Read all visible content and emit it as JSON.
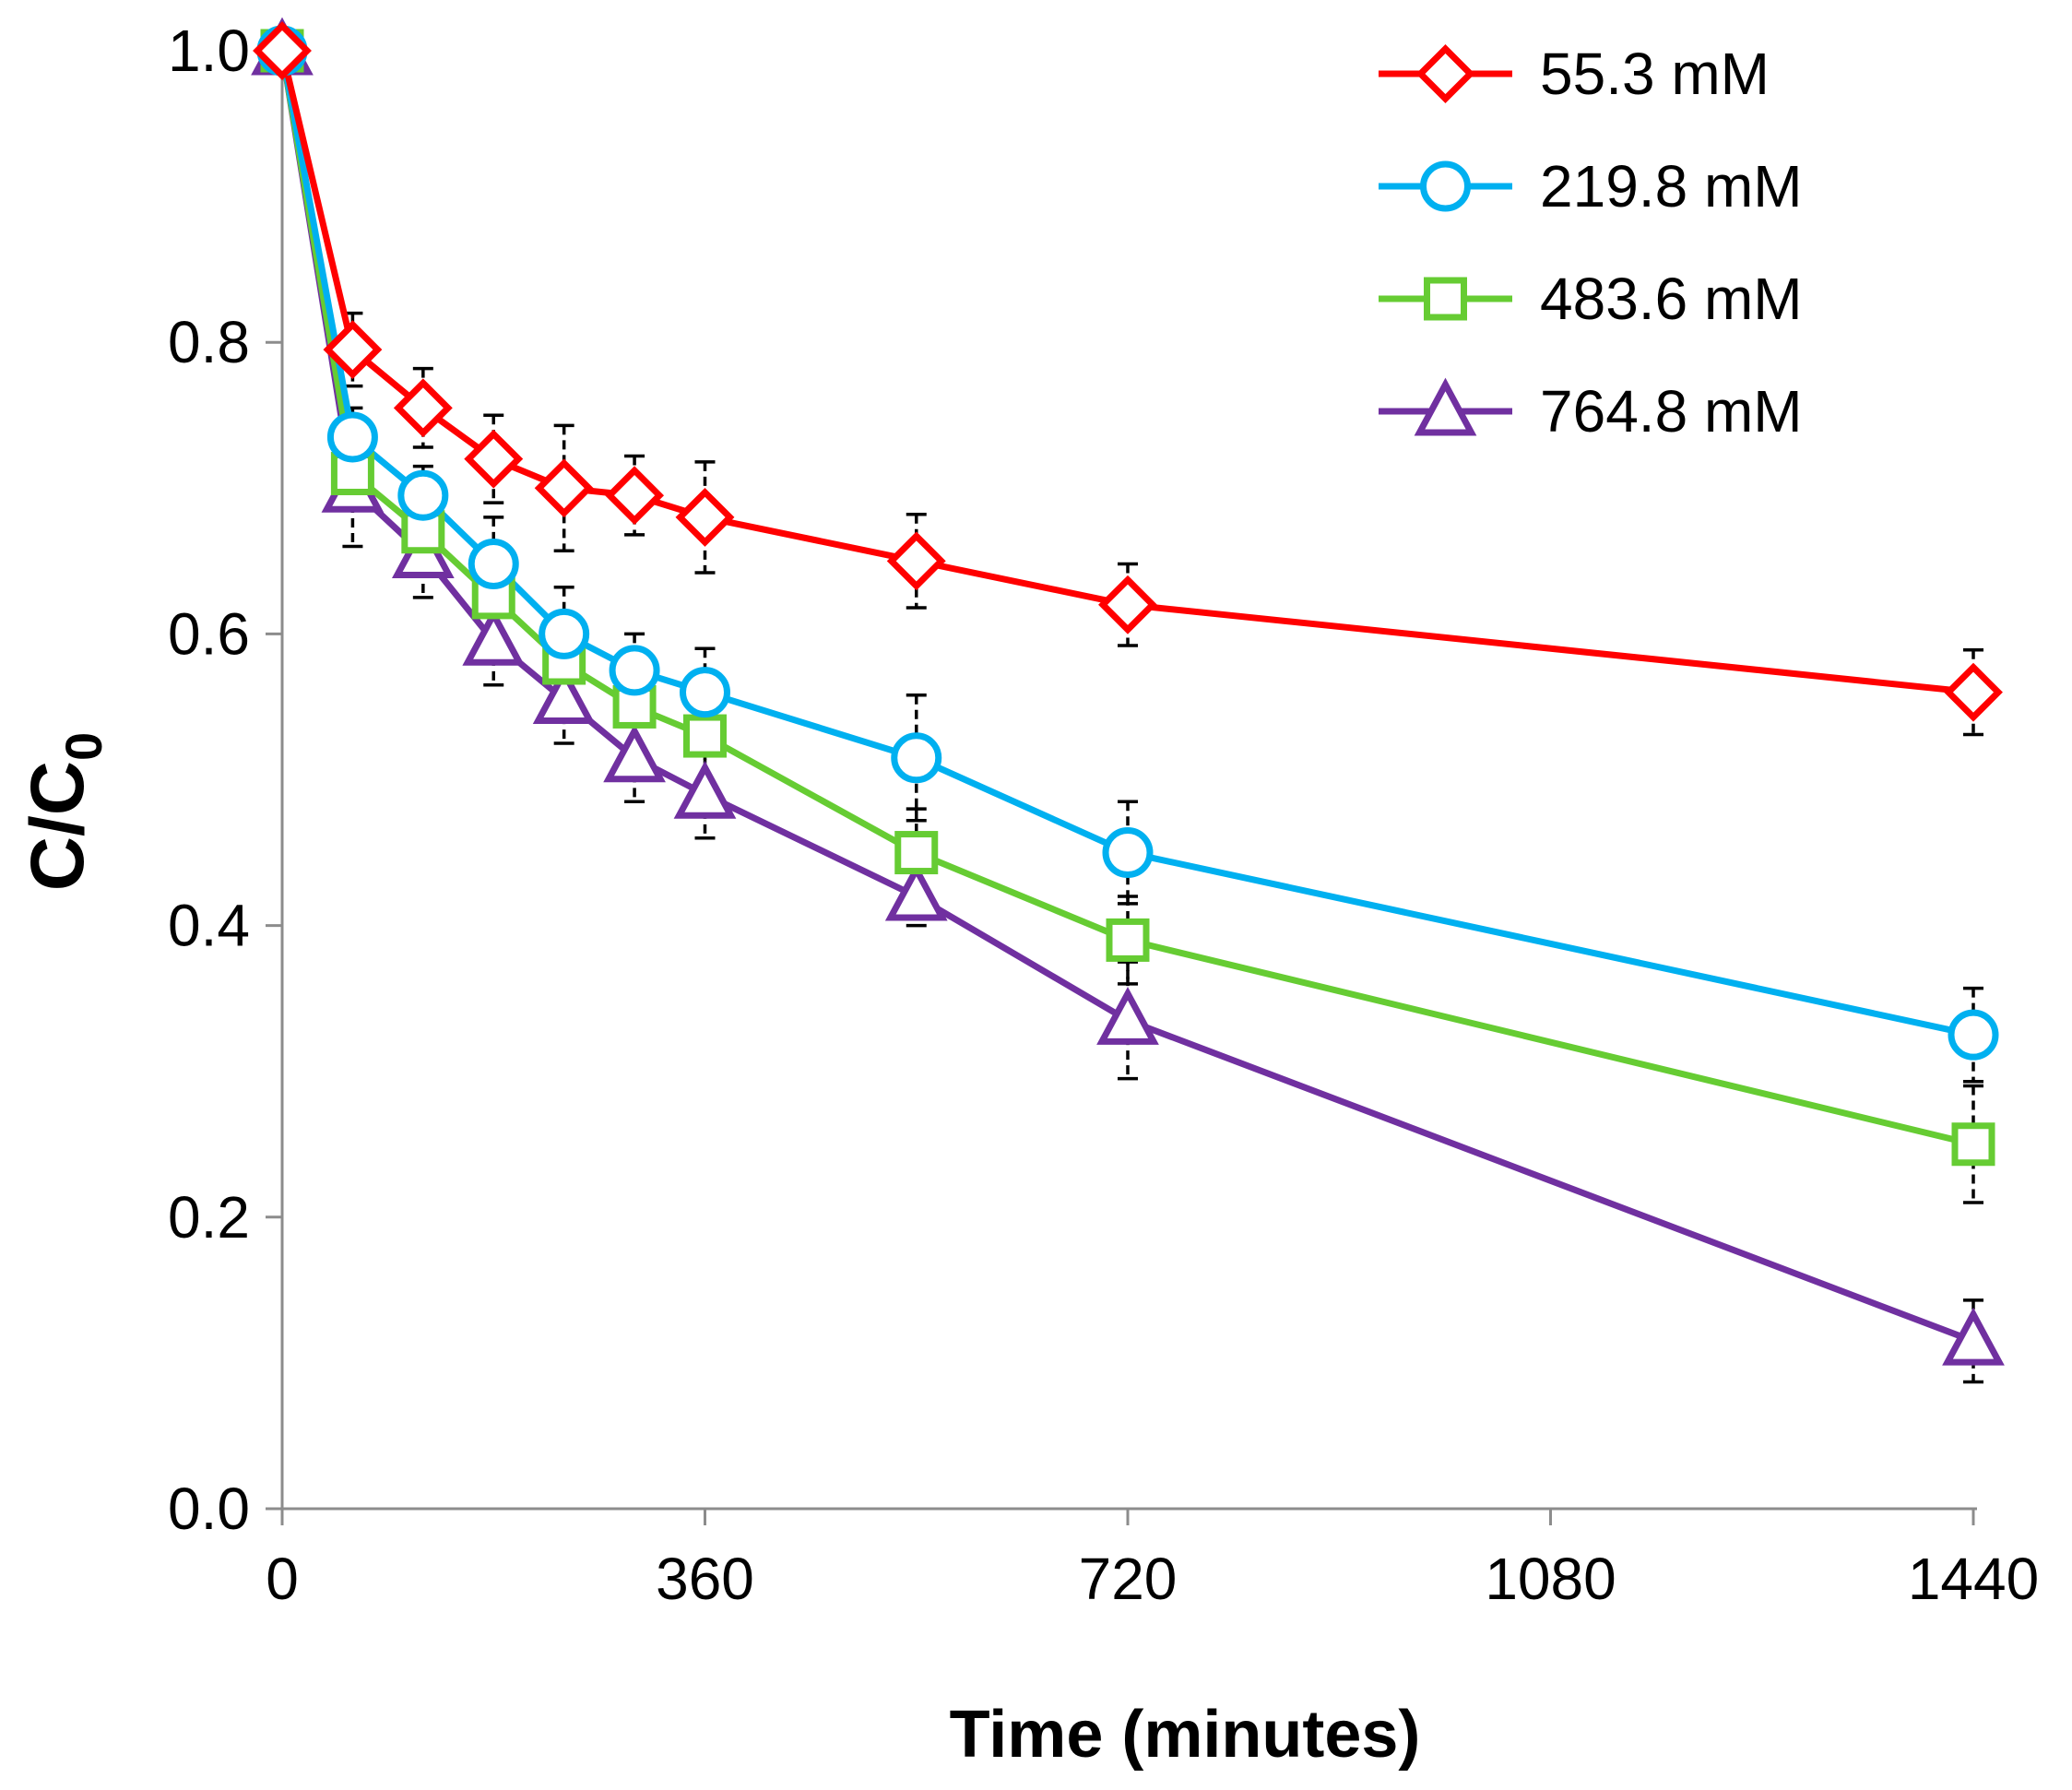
{
  "chart_data": {
    "type": "line",
    "title": "",
    "xlabel": "Time (minutes)",
    "ylabel_main": "C/C",
    "ylabel_sub": "0",
    "x": [
      0,
      60,
      120,
      180,
      240,
      300,
      360,
      540,
      720,
      1440
    ],
    "xlim": [
      0,
      1440
    ],
    "ylim": [
      0,
      1.0
    ],
    "xticks": [
      0,
      360,
      720,
      1080,
      1440
    ],
    "xtick_labels": [
      "0",
      "360",
      "720",
      "1080",
      "1440"
    ],
    "yticks": [
      0,
      0.2,
      0.4,
      0.6,
      0.8,
      1.0
    ],
    "ytick_labels": [
      "0.0",
      "0.2",
      "0.4",
      "0.6",
      "0.8",
      "1.0"
    ],
    "grid": false,
    "legend_position": "top-right",
    "series": [
      {
        "name": "55.3 mM",
        "color": "#ff0000",
        "marker": "diamond",
        "values": [
          1.0,
          0.795,
          0.755,
          0.72,
          0.7,
          0.695,
          0.68,
          0.65,
          0.62,
          0.56
        ],
        "errors": [
          0.0,
          0.025,
          0.027,
          0.03,
          0.043,
          0.027,
          0.038,
          0.032,
          0.028,
          0.029
        ]
      },
      {
        "name": "219.8 mM",
        "color": "#00b0f0",
        "marker": "circle",
        "values": [
          1.0,
          0.735,
          0.695,
          0.648,
          0.6,
          0.575,
          0.56,
          0.515,
          0.45,
          0.325
        ],
        "errors": [
          0.0,
          0.02,
          0.02,
          0.032,
          0.032,
          0.025,
          0.03,
          0.043,
          0.035,
          0.032
        ]
      },
      {
        "name": "483.6 mM",
        "color": "#66cc33",
        "marker": "square",
        "values": [
          1.0,
          0.71,
          0.67,
          0.625,
          0.58,
          0.55,
          0.53,
          0.45,
          0.39,
          0.25
        ],
        "errors": [
          0.0,
          0.02,
          0.025,
          0.035,
          0.03,
          0.03,
          0.035,
          0.03,
          0.03,
          0.04
        ]
      },
      {
        "name": "764.8 mM",
        "color": "#7030a0",
        "marker": "triangle",
        "values": [
          1.0,
          0.7,
          0.655,
          0.595,
          0.555,
          0.515,
          0.49,
          0.42,
          0.335,
          0.115
        ],
        "errors": [
          0.0,
          0.04,
          0.03,
          0.03,
          0.03,
          0.03,
          0.03,
          0.02,
          0.04,
          0.028
        ]
      }
    ]
  }
}
